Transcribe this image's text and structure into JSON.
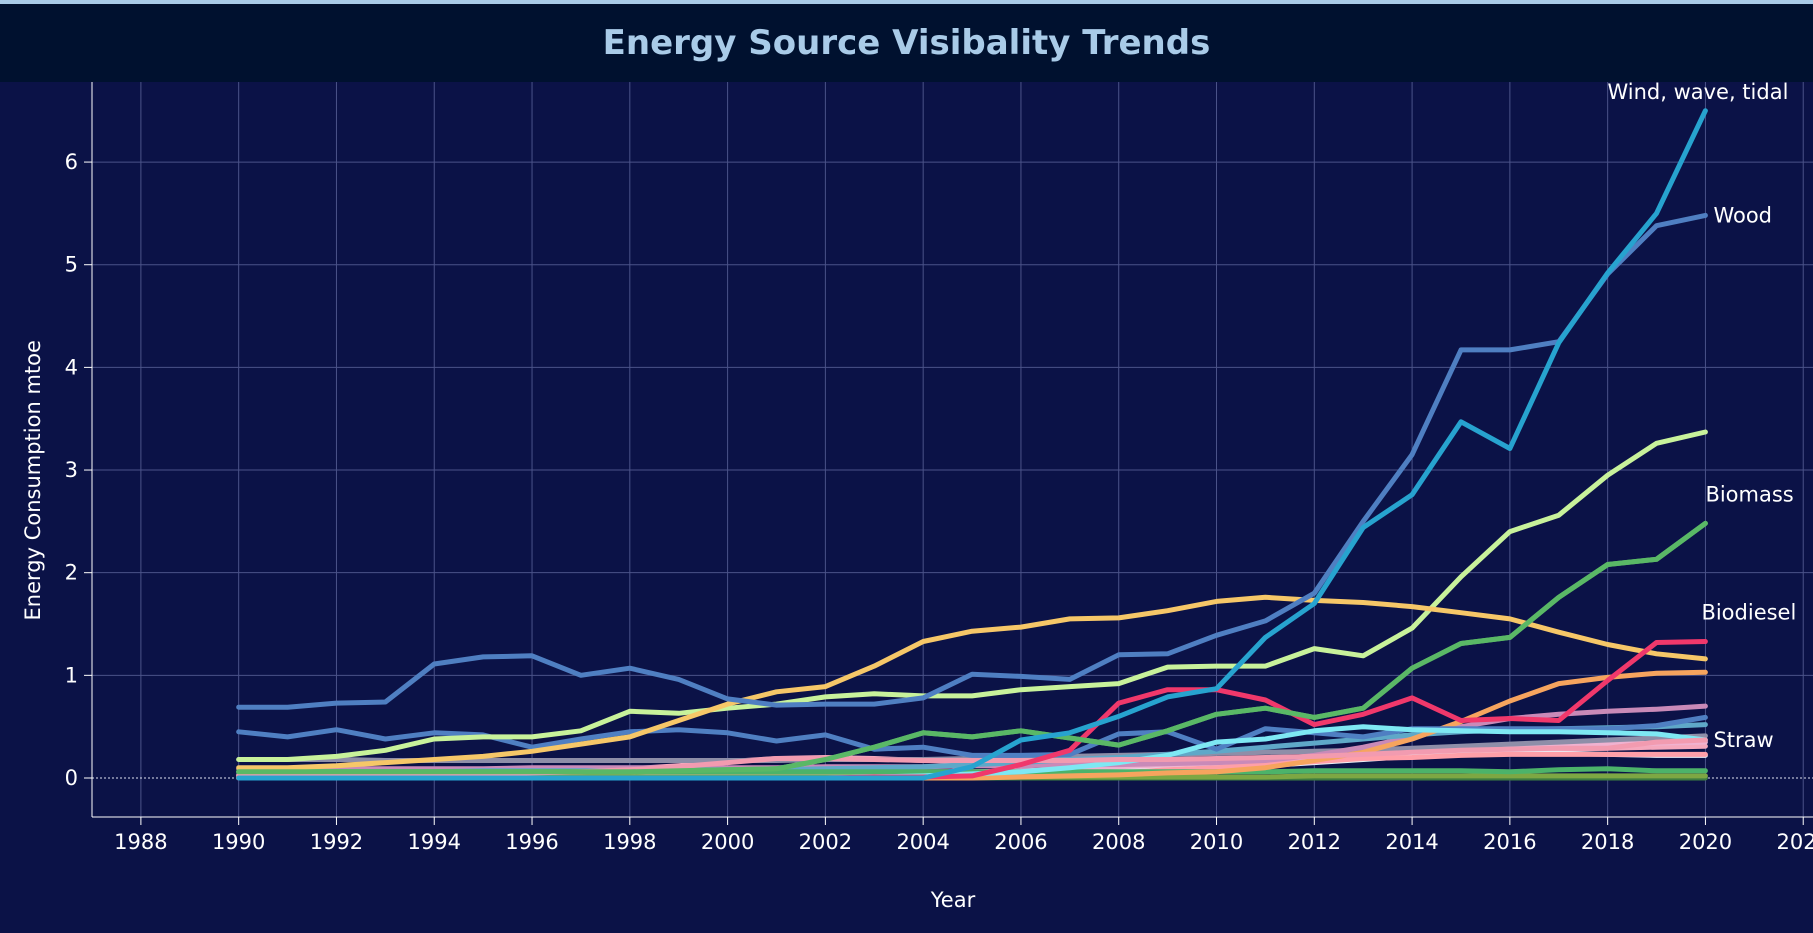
{
  "chart_data": {
    "type": "line",
    "title": "Energy Source Visibality Trends",
    "xlabel": "Year",
    "ylabel": "Energy Consumption mtoe",
    "xlim": [
      1987,
      2022.2
    ],
    "ylim": [
      -0.38,
      6.78
    ],
    "xticks": [
      "1988",
      "1990",
      "1992",
      "1994",
      "1996",
      "1998",
      "2000",
      "2002",
      "2004",
      "2006",
      "2008",
      "2010",
      "2012",
      "2014",
      "2016",
      "2018",
      "2020",
      "2022"
    ],
    "yticks": [
      "0",
      "1",
      "2",
      "3",
      "4",
      "5",
      "6"
    ],
    "grid": true,
    "x": [
      1990,
      1991,
      1992,
      1993,
      1994,
      1995,
      1996,
      1997,
      1998,
      1999,
      2000,
      2001,
      2002,
      2003,
      2004,
      2005,
      2006,
      2007,
      2008,
      2009,
      2010,
      2011,
      2012,
      2013,
      2014,
      2015,
      2016,
      2017,
      2018,
      2019,
      2020
    ],
    "series": [
      {
        "name": "",
        "color": "#f5a8bd",
        "values": [
          0.02,
          0.02,
          0.02,
          0.03,
          0.03,
          0.04,
          0.05,
          0.07,
          0.09,
          0.12,
          0.16,
          0.19,
          0.2,
          0.19,
          0.17,
          0.16,
          0.15,
          0.15,
          0.16,
          0.16,
          0.16,
          0.17,
          0.18,
          0.2,
          0.22,
          0.24,
          0.27,
          0.28,
          0.29,
          0.3,
          0.31
        ]
      },
      {
        "name": "",
        "color": "#f0b2d0",
        "values": [
          0.03,
          0.03,
          0.03,
          0.03,
          0.03,
          0.03,
          0.03,
          0.04,
          0.04,
          0.04,
          0.05,
          0.05,
          0.05,
          0.05,
          0.06,
          0.06,
          0.07,
          0.08,
          0.09,
          0.11,
          0.13,
          0.15,
          0.18,
          0.21,
          0.25,
          0.3,
          0.32,
          0.33,
          0.33,
          0.34,
          0.35
        ]
      },
      {
        "name": "",
        "color": "#e9eef7",
        "values": [
          0,
          0,
          0,
          0,
          0,
          0,
          0,
          0,
          0,
          0,
          0,
          0.01,
          0.01,
          0.01,
          0.02,
          0.03,
          0.04,
          0.05,
          0.06,
          0.08,
          0.1,
          0.12,
          0.15,
          0.18,
          0.21,
          0.24,
          0.25,
          0.24,
          0.23,
          0.22,
          0.22
        ]
      },
      {
        "name": "",
        "color": "#ff9fa8",
        "values": [
          0,
          0,
          0,
          0,
          0,
          0,
          0,
          0,
          0,
          0,
          0,
          0,
          0,
          0,
          0.01,
          0.01,
          0.02,
          0.03,
          0.05,
          0.08,
          0.1,
          0.13,
          0.16,
          0.19,
          0.2,
          0.22,
          0.23,
          0.23,
          0.23,
          0.23,
          0.23
        ]
      },
      {
        "name": "",
        "color": "#8e8ea8",
        "values": [
          0.18,
          0.18,
          0.18,
          0.17,
          0.17,
          0.17,
          0.17,
          0.17,
          0.17,
          0.17,
          0.17,
          0.17,
          0.18,
          0.18,
          0.18,
          0.19,
          0.2,
          0.21,
          0.22,
          0.23,
          0.24,
          0.25,
          0.26,
          0.27,
          0.29,
          0.31,
          0.33,
          0.35,
          0.37,
          0.39,
          0.41
        ]
      },
      {
        "name": "",
        "color": "#c98ab8",
        "values": [
          0.09,
          0.09,
          0.09,
          0.09,
          0.09,
          0.09,
          0.1,
          0.1,
          0.1,
          0.1,
          0.1,
          0.1,
          0.11,
          0.11,
          0.11,
          0.12,
          0.12,
          0.13,
          0.13,
          0.14,
          0.15,
          0.17,
          0.22,
          0.3,
          0.4,
          0.5,
          0.58,
          0.62,
          0.65,
          0.67,
          0.7
        ]
      },
      {
        "name": "",
        "color": "#5fa8c8",
        "values": [
          0.06,
          0.06,
          0.06,
          0.06,
          0.06,
          0.07,
          0.07,
          0.07,
          0.07,
          0.08,
          0.08,
          0.08,
          0.09,
          0.1,
          0.11,
          0.13,
          0.15,
          0.18,
          0.2,
          0.23,
          0.26,
          0.3,
          0.34,
          0.38,
          0.42,
          0.45,
          0.47,
          0.48,
          0.49,
          0.5,
          0.52
        ]
      },
      {
        "name": "",
        "color": "#3d7d40",
        "values": [
          0,
          0,
          0,
          0,
          0,
          0,
          0,
          0,
          0,
          0,
          0,
          0,
          0,
          0,
          0,
          0,
          0,
          0,
          0,
          0,
          0,
          0,
          0,
          0,
          0,
          0,
          0,
          0,
          0,
          0,
          0
        ]
      },
      {
        "name": "",
        "color": "#7da743",
        "values": [
          0.01,
          0.01,
          0.01,
          0.01,
          0.01,
          0.01,
          0.01,
          0.01,
          0.01,
          0.01,
          0.01,
          0.01,
          0.01,
          0.01,
          0.01,
          0.01,
          0.01,
          0.01,
          0.01,
          0.01,
          0.01,
          0.01,
          0.02,
          0.02,
          0.02,
          0.02,
          0.02,
          0.02,
          0.02,
          0.02,
          0.02
        ]
      },
      {
        "name": "",
        "color": "#4cb36a",
        "values": [
          0.06,
          0.06,
          0.06,
          0.06,
          0.06,
          0.06,
          0.06,
          0.06,
          0.06,
          0.06,
          0.06,
          0.06,
          0.06,
          0.06,
          0.06,
          0.06,
          0.06,
          0.06,
          0.06,
          0.06,
          0.06,
          0.06,
          0.07,
          0.07,
          0.07,
          0.07,
          0.06,
          0.08,
          0.09,
          0.07,
          0.07
        ]
      },
      {
        "name": "",
        "color": "#f6a45e",
        "values": [
          0,
          0,
          0,
          0,
          0,
          0,
          0,
          0,
          0,
          0,
          0,
          0,
          0,
          0,
          0,
          0,
          0.01,
          0.02,
          0.03,
          0.05,
          0.06,
          0.1,
          0.17,
          0.25,
          0.38,
          0.55,
          0.75,
          0.92,
          0.98,
          1.02,
          1.03
        ]
      },
      {
        "name": "",
        "color": "#4f7fc2",
        "values": [
          0.45,
          0.4,
          0.47,
          0.38,
          0.44,
          0.42,
          0.3,
          0.38,
          0.45,
          0.47,
          0.44,
          0.36,
          0.42,
          0.28,
          0.3,
          0.22,
          0.22,
          0.23,
          0.43,
          0.45,
          0.28,
          0.48,
          0.44,
          0.4,
          0.48,
          0.48,
          0.48,
          0.48,
          0.48,
          0.51,
          0.59
        ]
      },
      {
        "name": "",
        "color": "#5ab866",
        "values": [
          0.06,
          0.06,
          0.06,
          0.06,
          0.06,
          0.06,
          0.06,
          0.06,
          0.06,
          0.07,
          0.08,
          0.09,
          0.18,
          0.3,
          0.44,
          0.4,
          0.46,
          0.39,
          0.32,
          0.46,
          0.62,
          0.68,
          0.59,
          0.68,
          1.07,
          1.31,
          1.37,
          1.76,
          2.08,
          2.13,
          2.48
        ]
      },
      {
        "name": "",
        "color": "#7ee8f3",
        "values": [
          0,
          0,
          0,
          0,
          0,
          0,
          0,
          0,
          0,
          0,
          0,
          0,
          0,
          0.01,
          0.02,
          0.04,
          0.06,
          0.1,
          0.15,
          0.22,
          0.35,
          0.38,
          0.46,
          0.5,
          0.47,
          0.46,
          0.45,
          0.45,
          0.44,
          0.43,
          0.37
        ]
      },
      {
        "name": "",
        "color": "#c8f29b",
        "values": [
          0.18,
          0.18,
          0.21,
          0.27,
          0.38,
          0.4,
          0.4,
          0.46,
          0.65,
          0.63,
          0.68,
          0.72,
          0.79,
          0.82,
          0.8,
          0.8,
          0.86,
          0.89,
          0.92,
          1.08,
          1.09,
          1.09,
          1.26,
          1.19,
          1.46,
          1.96,
          2.4,
          2.56,
          2.95,
          3.26,
          3.37
        ]
      },
      {
        "name": "",
        "color": "#f6c768",
        "values": [
          0.1,
          0.1,
          0.12,
          0.15,
          0.18,
          0.21,
          0.26,
          0.33,
          0.4,
          0.56,
          0.72,
          0.84,
          0.89,
          1.09,
          1.33,
          1.43,
          1.47,
          1.55,
          1.56,
          1.63,
          1.72,
          1.76,
          1.73,
          1.71,
          1.67,
          1.61,
          1.55,
          1.42,
          1.3,
          1.21,
          1.16
        ]
      },
      {
        "name": "Straw",
        "color": "#f29bb0",
        "values": [
          0.02,
          0.02,
          0.02,
          0.02,
          0.03,
          0.04,
          0.05,
          0.06,
          0.08,
          0.11,
          0.15,
          0.19,
          0.19,
          0.18,
          0.17,
          0.17,
          0.17,
          0.17,
          0.18,
          0.18,
          0.19,
          0.2,
          0.21,
          0.23,
          0.25,
          0.27,
          0.28,
          0.29,
          0.29,
          0.35,
          0.37
        ]
      },
      {
        "name": "Biodiesel",
        "color": "#f0386b",
        "values": [
          0,
          0,
          0,
          0,
          0,
          0,
          0,
          0,
          0,
          0,
          0,
          0,
          0,
          0.01,
          0.01,
          0.02,
          0.13,
          0.27,
          0.73,
          0.86,
          0.86,
          0.76,
          0.52,
          0.62,
          0.78,
          0.56,
          0.58,
          0.56,
          0.95,
          1.32,
          1.33
        ]
      },
      {
        "name": "Biomass",
        "color": "#5ab866",
        "values": [
          0.06,
          0.06,
          0.06,
          0.06,
          0.06,
          0.06,
          0.06,
          0.06,
          0.06,
          0.07,
          0.08,
          0.09,
          0.18,
          0.3,
          0.44,
          0.4,
          0.46,
          0.39,
          0.32,
          0.46,
          0.62,
          0.68,
          0.59,
          0.68,
          1.07,
          1.31,
          1.37,
          1.76,
          2.08,
          2.13,
          2.48
        ]
      },
      {
        "name": "Wood",
        "color": "#4f7fc2",
        "values": [
          0.69,
          0.69,
          0.73,
          0.74,
          1.11,
          1.18,
          1.19,
          1.0,
          1.07,
          0.96,
          0.77,
          0.71,
          0.72,
          0.72,
          0.78,
          1.01,
          0.99,
          0.96,
          1.2,
          1.21,
          1.39,
          1.53,
          1.8,
          2.5,
          3.15,
          4.17,
          4.17,
          4.25,
          4.91,
          5.38,
          5.48
        ]
      },
      {
        "name": "Wind, wave, tidal",
        "color": "#27a3cf",
        "values": [
          0,
          0,
          0,
          0,
          0,
          0,
          0,
          0,
          0,
          0,
          0,
          0,
          0,
          0,
          0,
          0.11,
          0.37,
          0.44,
          0.6,
          0.79,
          0.87,
          1.37,
          1.7,
          2.44,
          2.76,
          3.47,
          3.21,
          4.24,
          4.92,
          5.5,
          6.5
        ]
      }
    ]
  }
}
